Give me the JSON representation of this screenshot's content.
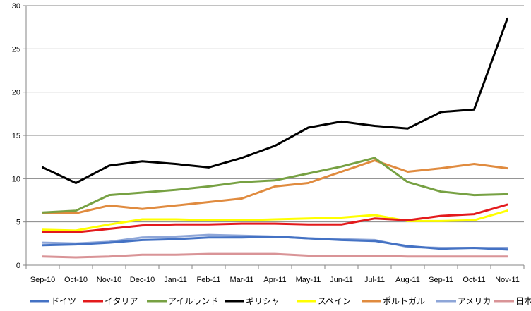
{
  "chart_data": {
    "type": "line",
    "title": "",
    "xlabel": "",
    "ylabel": "",
    "ylim": [
      0,
      30
    ],
    "yticks": [
      0,
      5,
      10,
      15,
      20,
      25,
      30
    ],
    "grid": true,
    "legend_position": "bottom",
    "categories": [
      "Sep-10",
      "Oct-10",
      "Nov-10",
      "Dec-10",
      "Jan-11",
      "Feb-11",
      "Mar-11",
      "Apr-11",
      "May-11",
      "Jun-11",
      "Jul-11",
      "Aug-11",
      "Sep-11",
      "Oct-11",
      "Nov-11"
    ],
    "series": [
      {
        "name": "ドイツ",
        "color": "#4472c4",
        "values": [
          2.3,
          2.4,
          2.6,
          2.9,
          3.0,
          3.2,
          3.2,
          3.3,
          3.1,
          2.9,
          2.8,
          2.2,
          1.9,
          2.0,
          1.8
        ]
      },
      {
        "name": "イタリア",
        "color": "#e31a1c",
        "values": [
          3.8,
          3.8,
          4.2,
          4.6,
          4.7,
          4.7,
          4.8,
          4.8,
          4.7,
          4.7,
          5.4,
          5.2,
          5.7,
          5.9,
          7.0
        ]
      },
      {
        "name": "アイルランド",
        "color": "#77a143",
        "values": [
          6.1,
          6.3,
          8.1,
          8.4,
          8.7,
          9.1,
          9.6,
          9.8,
          10.6,
          11.4,
          12.4,
          9.6,
          8.5,
          8.1,
          8.2
        ]
      },
      {
        "name": "ギリシャ",
        "color": "#000000",
        "values": [
          11.3,
          9.5,
          11.5,
          12.0,
          11.7,
          11.3,
          12.4,
          13.8,
          15.9,
          16.6,
          16.1,
          15.8,
          17.7,
          18.0,
          28.5
        ]
      },
      {
        "name": "スペイン",
        "color": "#ffff00",
        "values": [
          4.1,
          4.0,
          4.7,
          5.3,
          5.3,
          5.2,
          5.2,
          5.3,
          5.4,
          5.5,
          5.8,
          5.1,
          5.1,
          5.2,
          6.3
        ]
      },
      {
        "name": "ポルトガル",
        "color": "#e08b3f",
        "values": [
          6.0,
          6.0,
          6.9,
          6.5,
          6.9,
          7.3,
          7.7,
          9.1,
          9.5,
          10.8,
          12.1,
          10.8,
          11.2,
          11.7,
          11.2
        ]
      },
      {
        "name": "アメリカ",
        "color": "#8ea6d8",
        "values": [
          2.6,
          2.5,
          2.7,
          3.2,
          3.3,
          3.5,
          3.4,
          3.3,
          3.1,
          3.0,
          2.9,
          2.1,
          2.0,
          2.0,
          2.0
        ]
      },
      {
        "name": "日本",
        "color": "#d99497",
        "values": [
          1.0,
          0.9,
          1.0,
          1.2,
          1.2,
          1.3,
          1.3,
          1.3,
          1.1,
          1.1,
          1.1,
          1.0,
          1.0,
          1.0,
          1.0
        ]
      }
    ]
  }
}
